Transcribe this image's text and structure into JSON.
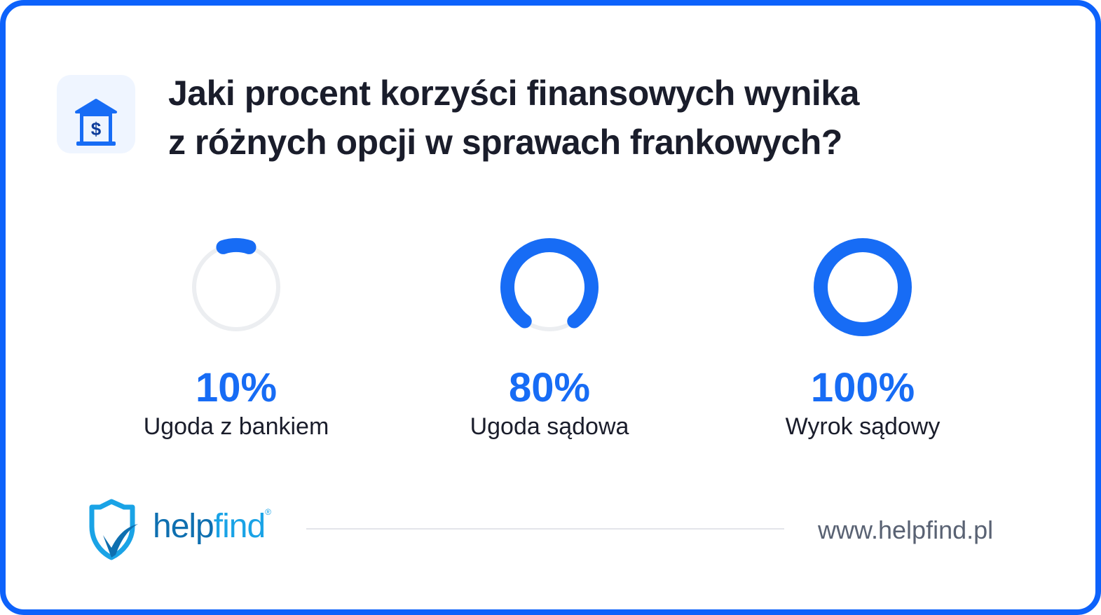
{
  "title_lines": [
    "Jaki procent korzyści finansowych wynika",
    "z różnych opcji w sprawach frankowych?"
  ],
  "header_icon": "bank-dollar-icon",
  "colors": {
    "accent": "#176cf5",
    "frame": "#0d62fb",
    "track": "#eceef1",
    "text": "#1a1d2b"
  },
  "chart_data": {
    "type": "progress-ring",
    "items": [
      {
        "label": "Ugoda z bankiem",
        "value": 10,
        "display": "10%"
      },
      {
        "label": "Ugoda sądowa",
        "value": 80,
        "display": "80%"
      },
      {
        "label": "Wyrok sądowy",
        "value": 100,
        "display": "100%"
      }
    ]
  },
  "footer": {
    "brand": "helpfind",
    "brand_a": "help",
    "brand_b": "find",
    "registered": "®",
    "url": "www.helpfind.pl"
  }
}
